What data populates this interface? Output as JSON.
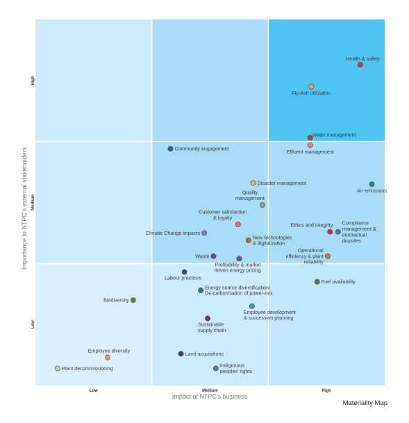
{
  "chart_data": {
    "type": "scatter",
    "title": "",
    "caption": "Materiality Map",
    "xlabel": "Impact of NTPC's business",
    "ylabel": "Importance to NTPC's external stakeholders",
    "xlim": [
      0,
      3
    ],
    "ylim": [
      0,
      3
    ],
    "x_ticks": [
      {
        "value": 0.5,
        "label": "Low"
      },
      {
        "value": 1.5,
        "label": "Medium"
      },
      {
        "value": 2.5,
        "label": "High"
      }
    ],
    "y_ticks": [
      {
        "value": 0.5,
        "label": "Low"
      },
      {
        "value": 1.5,
        "label": "Medium"
      },
      {
        "value": 2.5,
        "label": "High"
      }
    ],
    "zones": [
      {
        "col": 0,
        "row": 0,
        "color": "#dcefff"
      },
      {
        "col": 1,
        "row": 0,
        "color": "#cdeaff"
      },
      {
        "col": 2,
        "row": 0,
        "color": "#c2e6fb"
      },
      {
        "col": 0,
        "row": 1,
        "color": "#cdeaff"
      },
      {
        "col": 1,
        "row": 1,
        "color": "#a8dcf7"
      },
      {
        "col": 2,
        "row": 1,
        "color": "#a8dcf7"
      },
      {
        "col": 0,
        "row": 2,
        "color": "#cdeaff"
      },
      {
        "col": 1,
        "row": 2,
        "color": "#a8dcf7"
      },
      {
        "col": 2,
        "row": 2,
        "color": "#4fc3f4"
      }
    ],
    "points": [
      {
        "label": [
          "Health & safety"
        ],
        "x": 2.79,
        "y": 2.63,
        "color": "#b54a2a",
        "anchor": "above"
      },
      {
        "label": [
          "Fly-Ash utilization"
        ],
        "x": 2.37,
        "y": 2.45,
        "color": "#f4a85c",
        "anchor": "below"
      },
      {
        "label": [
          "Water management"
        ],
        "x": 2.36,
        "y": 2.03,
        "color": "#c0392b",
        "anchor": "right-up"
      },
      {
        "label": [
          "Effluent management"
        ],
        "x": 2.36,
        "y": 1.97,
        "color": "#f08080",
        "anchor": "below"
      },
      {
        "label": [
          "Community engagement"
        ],
        "x": 1.16,
        "y": 1.94,
        "color": "#2c5aa0",
        "anchor": "right"
      },
      {
        "label": [
          "Disaster management"
        ],
        "x": 1.87,
        "y": 1.66,
        "color": "#f4a85c",
        "anchor": "right"
      },
      {
        "label": [
          "Air emissions"
        ],
        "x": 2.89,
        "y": 1.65,
        "color": "#2e7f9e",
        "anchor": "below"
      },
      {
        "label": [
          "Quality",
          "management"
        ],
        "x": 1.95,
        "y": 1.48,
        "color": "#8bb24a",
        "anchor": "above-left"
      },
      {
        "label": [
          "Customer satisfaction",
          "& loyalty"
        ],
        "x": 1.74,
        "y": 1.32,
        "color": "#e8707a",
        "anchor": "above-left"
      },
      {
        "label": [
          "Climate Change impacts"
        ],
        "x": 1.45,
        "y": 1.25,
        "color": "#8a78c4",
        "anchor": "left"
      },
      {
        "label": [
          "Ethics and integrity"
        ],
        "x": 2.53,
        "y": 1.26,
        "color": "#c0392b",
        "anchor": "above-left"
      },
      {
        "label": [
          "Compliance",
          "management &",
          "contractual",
          "disputes"
        ],
        "x": 2.6,
        "y": 1.26,
        "color": "#4a78c4",
        "anchor": "right"
      },
      {
        "label": [
          "New technologies",
          "& digitalization"
        ],
        "x": 1.83,
        "y": 1.19,
        "color": "#d35f1e",
        "anchor": "right"
      },
      {
        "label": [
          "Waste"
        ],
        "x": 1.53,
        "y": 1.06,
        "color": "#5a4aa0",
        "anchor": "left"
      },
      {
        "label": [
          "Profitability & market",
          "driven energy pricing"
        ],
        "x": 1.75,
        "y": 1.04,
        "color": "#4a6aa0",
        "anchor": "below-left"
      },
      {
        "label": [
          "Operational",
          "efficiency & plant",
          "reliability"
        ],
        "x": 2.51,
        "y": 1.06,
        "color": "#e07a1e",
        "anchor": "left"
      },
      {
        "label": [
          "Labour practices"
        ],
        "x": 1.28,
        "y": 0.93,
        "color": "#3a4a80",
        "anchor": "below-left"
      },
      {
        "label": [
          "Fuel availability"
        ],
        "x": 2.42,
        "y": 0.85,
        "color": "#5a7a2a",
        "anchor": "right"
      },
      {
        "label": [
          "Energy source diversification/",
          "De-carbonisation of power-mix"
        ],
        "x": 1.42,
        "y": 0.78,
        "color": "#1e7a7a",
        "anchor": "right"
      },
      {
        "label": [
          "Biodiversity"
        ],
        "x": 0.84,
        "y": 0.7,
        "color": "#6a8a2a",
        "anchor": "left"
      },
      {
        "label": [
          "Employee development",
          "& succession planning"
        ],
        "x": 1.86,
        "y": 0.65,
        "color": "#3a9ab4",
        "anchor": "below-left"
      },
      {
        "label": [
          "Sustainable",
          "supply chain"
        ],
        "x": 1.48,
        "y": 0.55,
        "color": "#5a3a7a",
        "anchor": "below-left"
      },
      {
        "label": [
          "Employee diversity"
        ],
        "x": 0.62,
        "y": 0.23,
        "color": "#e89a5a",
        "anchor": "above-left"
      },
      {
        "label": [
          "Land acquisitions"
        ],
        "x": 1.25,
        "y": 0.26,
        "color": "#4a3a7a",
        "anchor": "right"
      },
      {
        "label": [
          "Plant decommissioning"
        ],
        "x": 0.19,
        "y": 0.14,
        "color": "#a8e0a0",
        "anchor": "right"
      },
      {
        "label": [
          "Indigenous",
          "peoples' rights"
        ],
        "x": 1.55,
        "y": 0.14,
        "color": "#5a7aa0",
        "anchor": "right"
      }
    ]
  }
}
